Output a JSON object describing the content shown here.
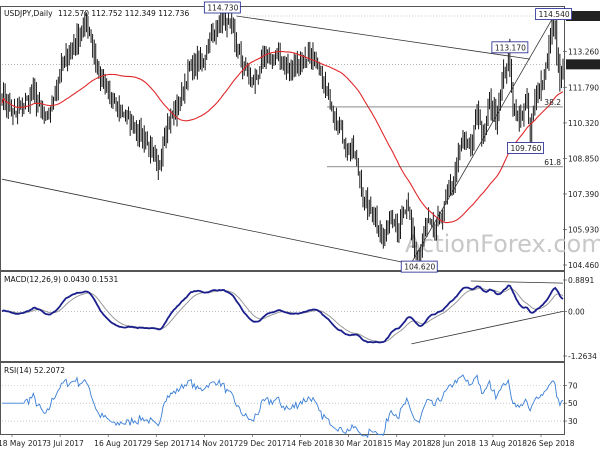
{
  "chart_data": [
    {
      "type": "ohlc",
      "title": "USDJPY,Daily",
      "ohlc_label": "112.570 112.752 112.349 112.736",
      "last_price": 112.736,
      "ylim": [
        104.46,
        114.73
      ],
      "y_ticks": [
        104.46,
        105.93,
        107.39,
        108.85,
        110.32,
        111.79,
        113.26,
        114.73
      ],
      "x_tick_labels": [
        "18 May 2017",
        "3 Jul 2017",
        "16 Aug 2017",
        "29 Sep 2017",
        "14 Nov 2017",
        "29 Dec 2017",
        "14 Feb 2018",
        "30 Mar 2018",
        "15 May 2018",
        "28 Jun 2018",
        "13 Aug 2018",
        "26 Sep 2018"
      ],
      "swing_labels": [
        {
          "label": "114.730",
          "value": 114.73
        },
        {
          "label": "104.620",
          "value": 104.62
        },
        {
          "label": "113.170",
          "value": 113.17
        },
        {
          "label": "109.760",
          "value": 109.76
        },
        {
          "label": "114.540",
          "value": 114.54
        }
      ],
      "fib_levels": [
        {
          "label": "38.2",
          "value": 110.98
        },
        {
          "label": "61.8",
          "value": 108.51
        }
      ],
      "support_label": "112.736"
    },
    {
      "type": "line",
      "title": "MACD(12,26,9) 0.0430 0.1531",
      "y_ticks": [
        "0.8891",
        "0.00",
        "-1.2634"
      ],
      "ylim": [
        -1.2634,
        0.8891
      ]
    },
    {
      "type": "line",
      "title": "RSI(14) 52.2072",
      "y_ticks": [
        "70",
        "50",
        "30"
      ],
      "ylim": [
        20,
        85
      ]
    }
  ],
  "watermark": "ActionForex.com",
  "colors": {
    "price": "#000000",
    "ma": "#e0282b",
    "macd": "#1a1f8c",
    "signal": "#9a9a9a",
    "rsi": "#3b7fd6",
    "label_border": "#1a1f8c"
  }
}
